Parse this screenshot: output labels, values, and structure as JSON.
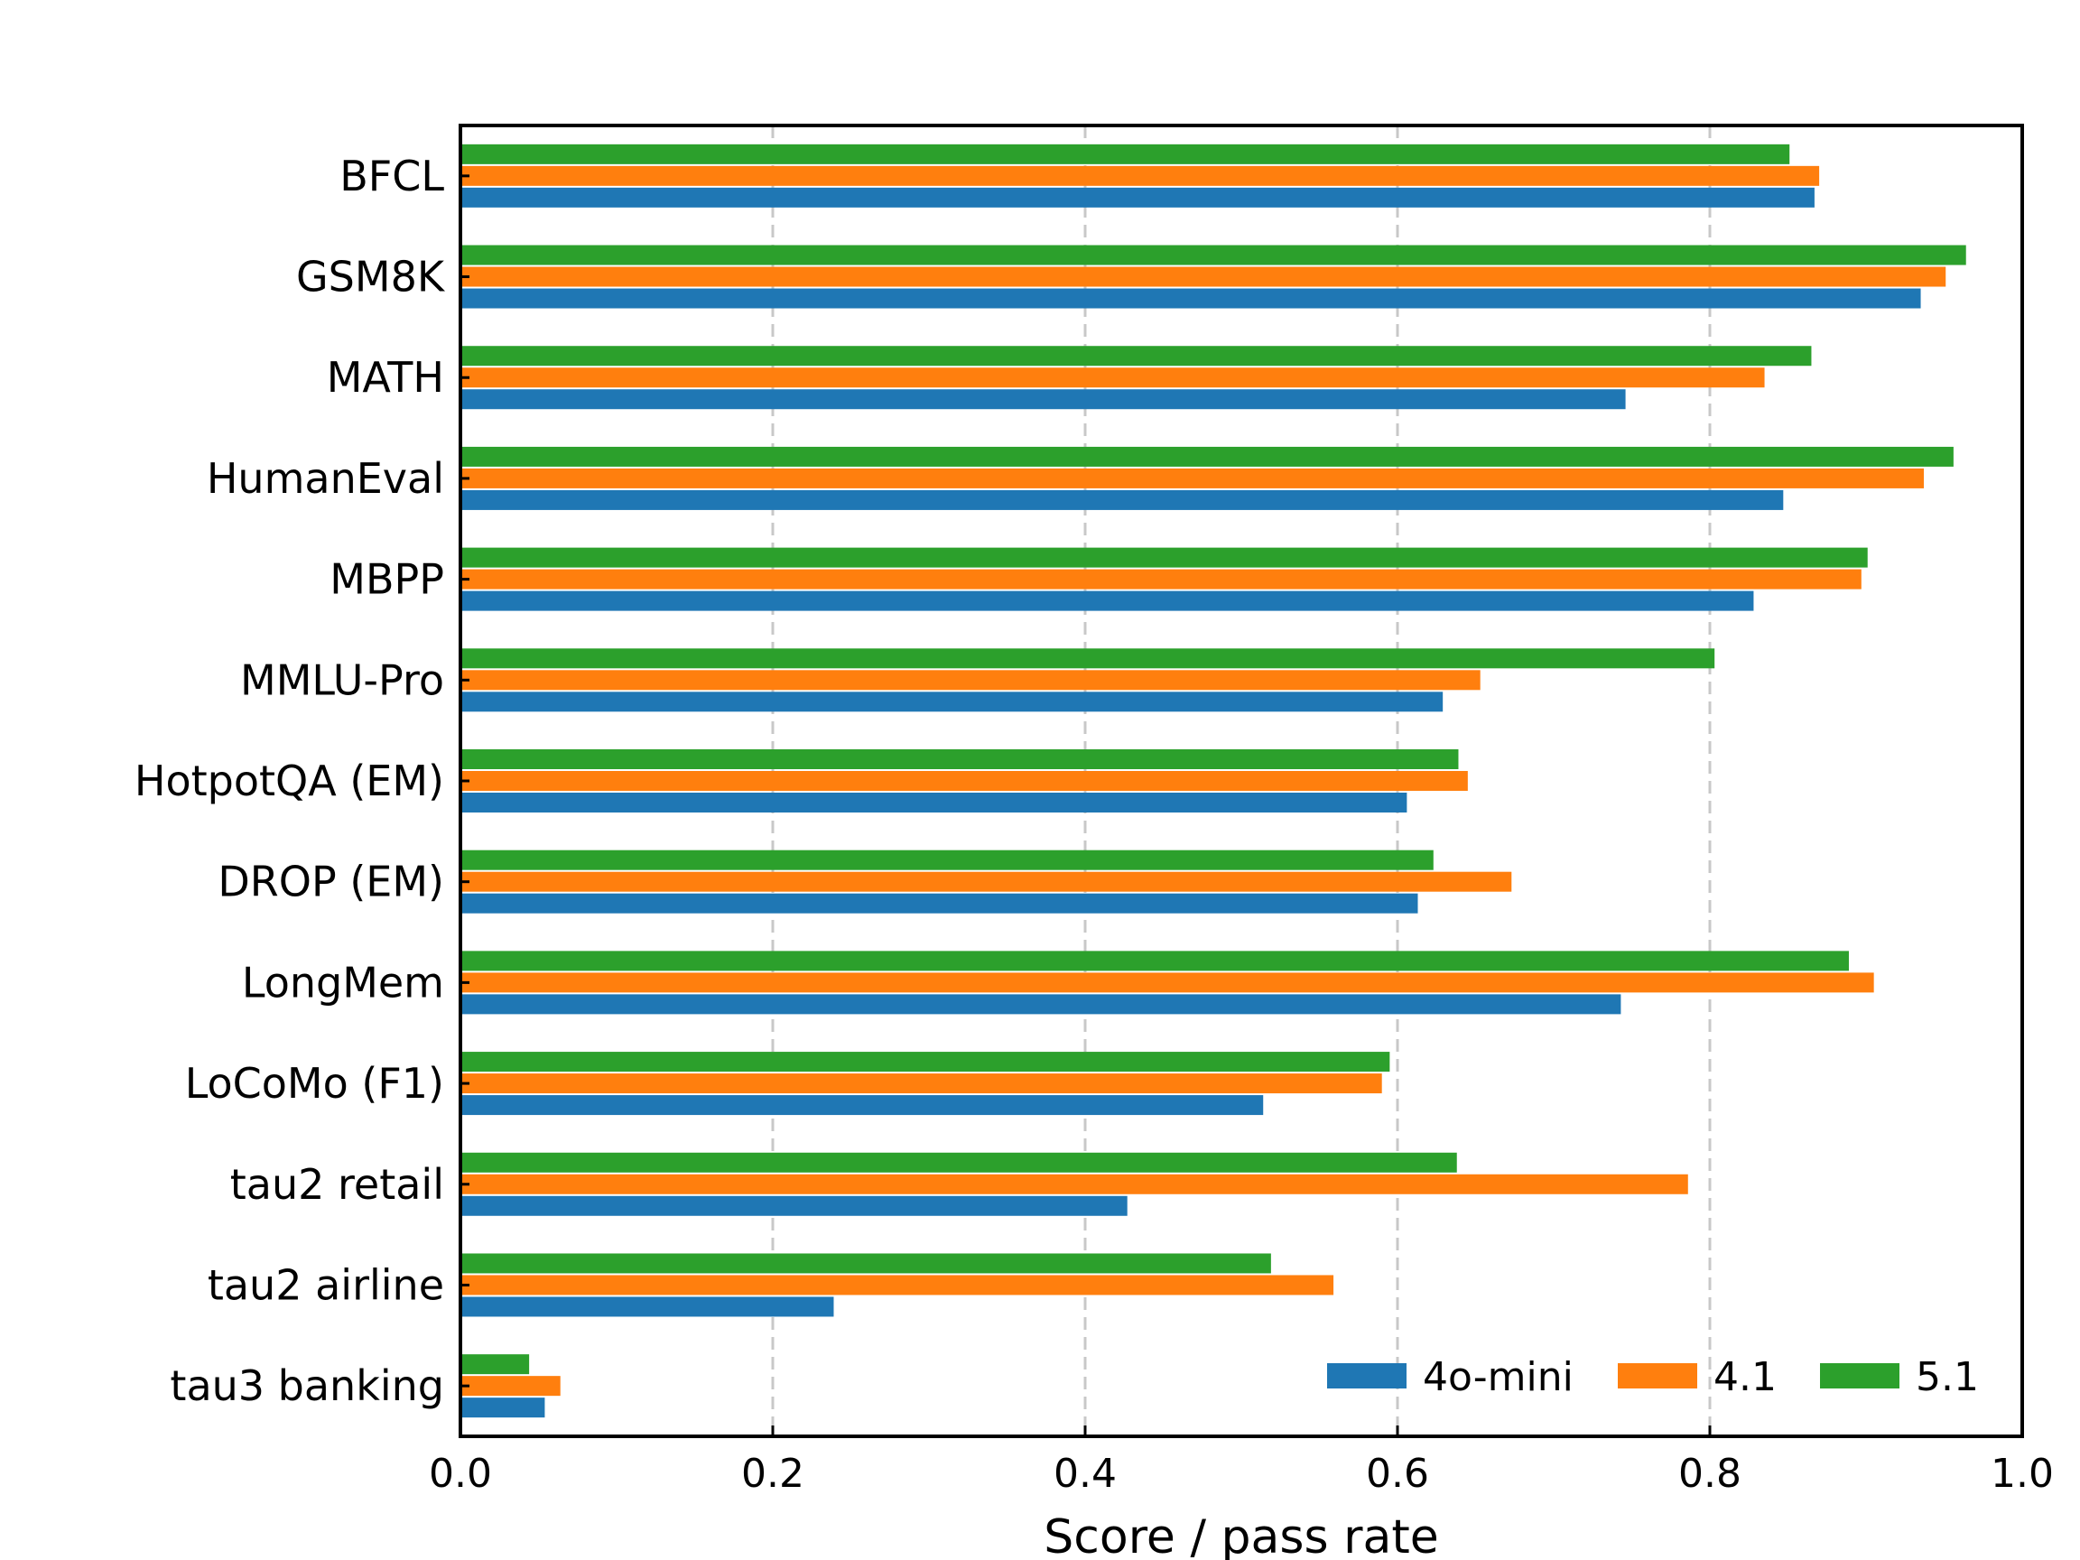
{
  "chart_data": {
    "type": "bar",
    "orientation": "horizontal",
    "categories": [
      "BFCL",
      "GSM8K",
      "MATH",
      "HumanEval",
      "MBPP",
      "MMLU-Pro",
      "HotpotQA (EM)",
      "DROP (EM)",
      "LongMem",
      "LoCoMo (F1)",
      "tau2 retail",
      "tau2 airline",
      "tau3 banking"
    ],
    "series": [
      {
        "name": "4o-mini",
        "color": "#1f77b4",
        "values": [
          0.867,
          0.935,
          0.746,
          0.847,
          0.828,
          0.629,
          0.606,
          0.613,
          0.743,
          0.514,
          0.427,
          0.239,
          0.054
        ]
      },
      {
        "name": "4.1",
        "color": "#ff7f0e",
        "values": [
          0.87,
          0.951,
          0.835,
          0.937,
          0.897,
          0.653,
          0.645,
          0.673,
          0.905,
          0.59,
          0.786,
          0.559,
          0.064
        ]
      },
      {
        "name": "5.1",
        "color": "#2ca02c",
        "values": [
          0.851,
          0.964,
          0.865,
          0.956,
          0.901,
          0.803,
          0.639,
          0.623,
          0.889,
          0.595,
          0.638,
          0.519,
          0.044
        ]
      }
    ],
    "xlabel": "Score / pass rate",
    "xlim": [
      0.0,
      1.0
    ],
    "xticks": [
      "0.0",
      "0.2",
      "0.4",
      "0.6",
      "0.8",
      "1.0"
    ],
    "xtick_values": [
      0.0,
      0.2,
      0.4,
      0.6,
      0.8,
      1.0
    ],
    "grid": "x-dashed",
    "legend_position": "bottom-right"
  }
}
